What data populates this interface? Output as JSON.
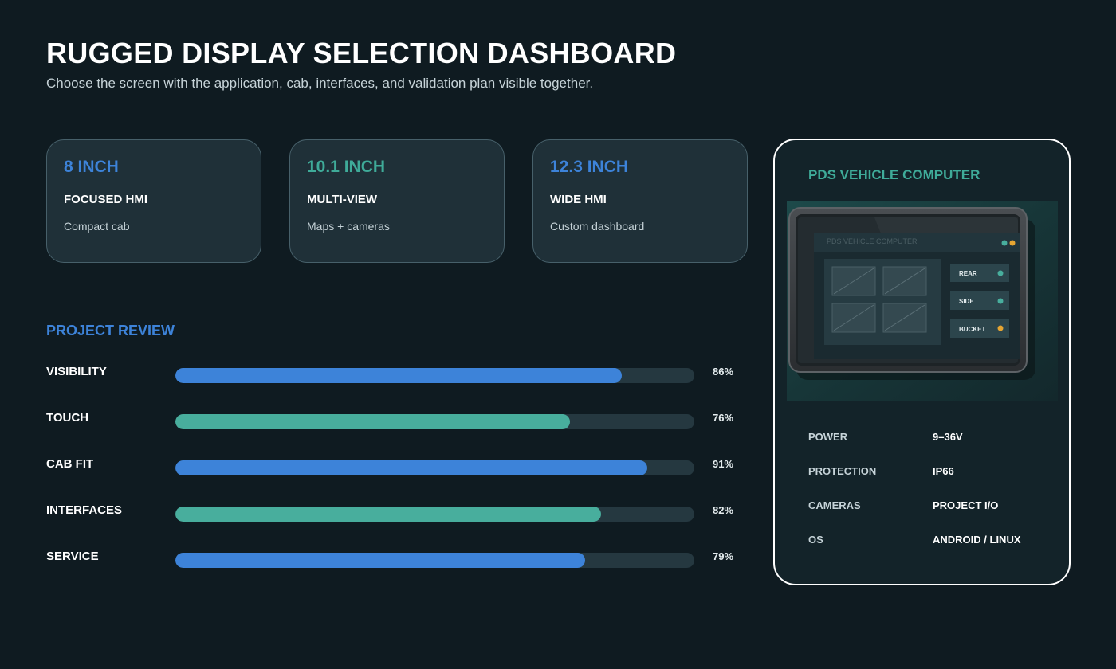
{
  "header": {
    "title": "RUGGED DISPLAY SELECTION DASHBOARD",
    "subtitle": "Choose the screen with the application, cab, interfaces, and validation plan visible together."
  },
  "size_cards": [
    {
      "size": "8 INCH",
      "kind": "FOCUSED HMI",
      "desc": "Compact cab",
      "accent": "#3d83d9"
    },
    {
      "size": "10.1 INCH",
      "kind": "MULTI-VIEW",
      "desc": "Maps + cameras",
      "accent": "#3fab99"
    },
    {
      "size": "12.3 INCH",
      "kind": "WIDE HMI",
      "desc": "Custom dashboard",
      "accent": "#3d83d9"
    }
  ],
  "review": {
    "title": "PROJECT REVIEW",
    "metrics": [
      {
        "label": "VISIBILITY",
        "value": 86,
        "text": "86%",
        "color": "#3d83d9"
      },
      {
        "label": "TOUCH",
        "value": 76,
        "text": "76%",
        "color": "#48ae9d"
      },
      {
        "label": "CAB FIT",
        "value": 91,
        "text": "91%",
        "color": "#3d83d9"
      },
      {
        "label": "INTERFACES",
        "value": 82,
        "text": "82%",
        "color": "#48ae9d"
      },
      {
        "label": "SERVICE",
        "value": 79,
        "text": "79%",
        "color": "#3d83d9"
      }
    ]
  },
  "panel": {
    "title": "PDS VEHICLE COMPUTER",
    "device_screen": {
      "header_text": "PDS VEHICLE COMPUTER",
      "buttons": [
        {
          "label": "REAR",
          "dot_color": "#48ae9d"
        },
        {
          "label": "SIDE",
          "dot_color": "#48ae9d"
        },
        {
          "label": "BUCKET",
          "dot_color": "#e6a532"
        }
      ]
    },
    "specs": [
      {
        "label": "POWER",
        "value": "9–36V"
      },
      {
        "label": "PROTECTION",
        "value": "IP66"
      },
      {
        "label": "CAMERAS",
        "value": "PROJECT I/O"
      },
      {
        "label": "OS",
        "value": "ANDROID / LINUX"
      }
    ]
  },
  "colors": {
    "background": "#0f1b21",
    "blue": "#3d83d9",
    "teal": "#3fab99",
    "amber": "#e6a532"
  }
}
